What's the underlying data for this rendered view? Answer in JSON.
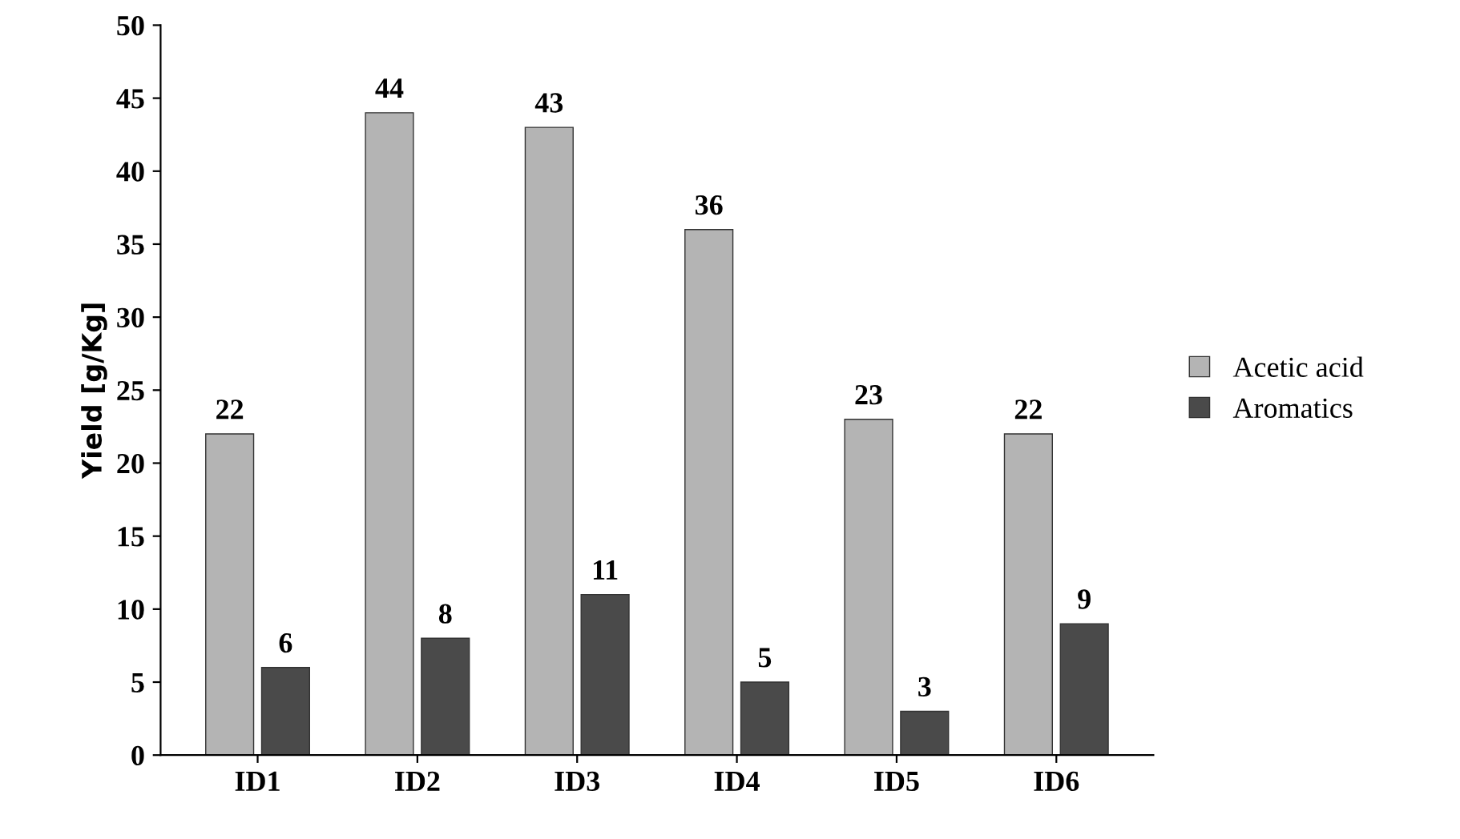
{
  "chart_data": {
    "type": "bar",
    "ylabel": "Yield [g/Kg]",
    "categories": [
      "ID1",
      "ID2",
      "ID3",
      "ID4",
      "ID5",
      "ID6"
    ],
    "series": [
      {
        "name": "Acetic acid",
        "color": "#b4b4b4",
        "values": [
          22,
          44,
          43,
          36,
          23,
          22
        ]
      },
      {
        "name": "Aromatics",
        "color": "#4a4a4a",
        "values": [
          6,
          8,
          11,
          5,
          3,
          9
        ]
      }
    ],
    "ylim": [
      0,
      50
    ],
    "yticks": [
      0,
      5,
      10,
      15,
      20,
      25,
      30,
      35,
      40,
      45,
      50
    ],
    "data_labels": true,
    "grid": false,
    "legend": "right"
  }
}
